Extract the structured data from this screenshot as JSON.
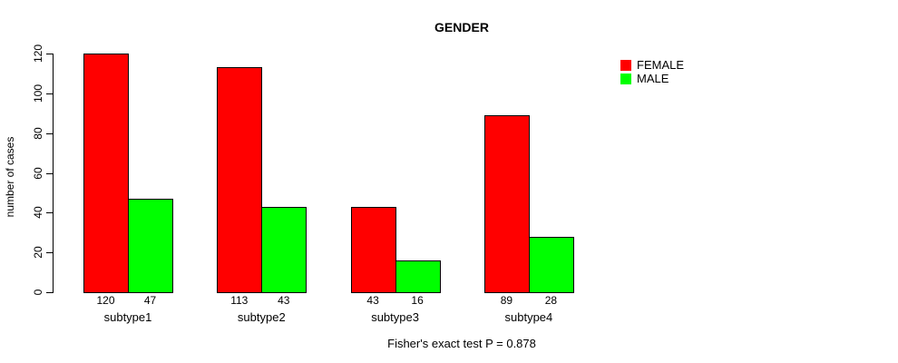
{
  "chart_data": {
    "type": "bar",
    "title": "GENDER",
    "ylabel": "number of cases",
    "xlabel": "",
    "categories": [
      "subtype1",
      "subtype2",
      "subtype3",
      "subtype4"
    ],
    "series": [
      {
        "name": "FEMALE",
        "color": "#ff0000",
        "values": [
          120,
          113,
          43,
          89
        ]
      },
      {
        "name": "MALE",
        "color": "#00ff00",
        "values": [
          47,
          43,
          16,
          28
        ]
      }
    ],
    "ylim": [
      0,
      120
    ],
    "yticks": [
      0,
      20,
      40,
      60,
      80,
      100,
      120
    ],
    "bar_value_labels_shown": true,
    "grid": false,
    "legend_position": "top-right",
    "annotation": "Fisher's exact test P = 0.878"
  }
}
